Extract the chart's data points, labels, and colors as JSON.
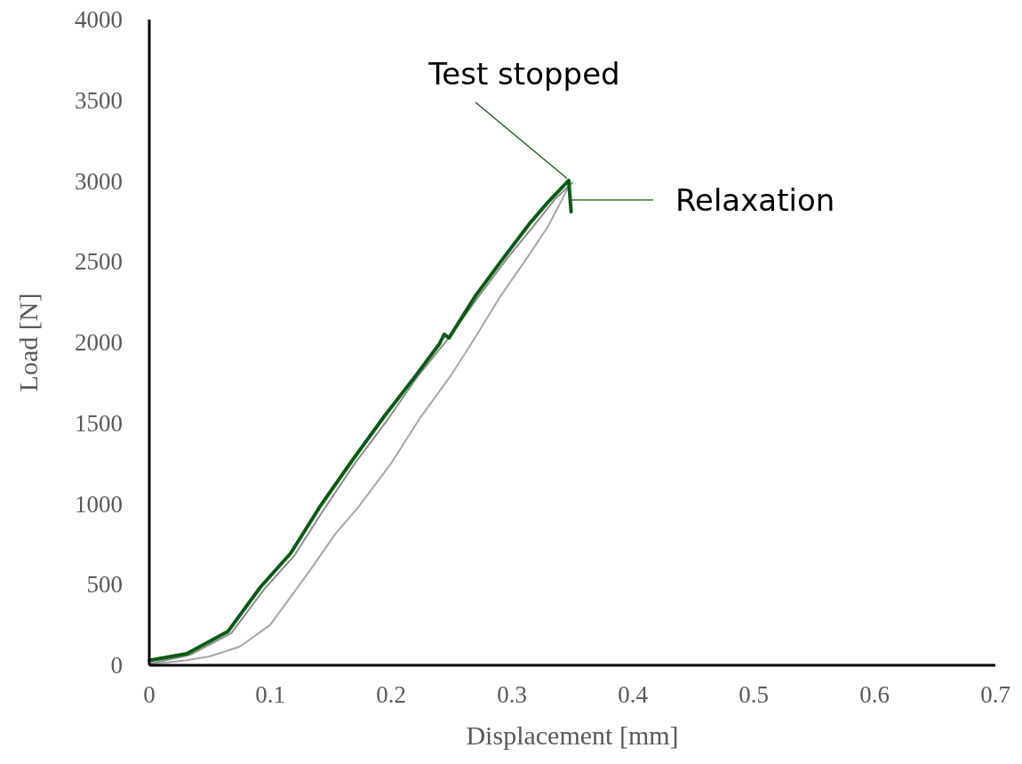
{
  "chart_data": {
    "type": "line",
    "xlabel": "Displacement [mm]",
    "ylabel": "Load [N]",
    "xlim": [
      0,
      0.7
    ],
    "ylim": [
      0,
      4000
    ],
    "xticks": [
      0,
      0.1,
      0.2,
      0.3,
      0.4,
      0.5,
      0.6,
      0.7
    ],
    "yticks": [
      0,
      500,
      1000,
      1500,
      2000,
      2500,
      3000,
      3500,
      4000
    ],
    "grid": false,
    "marker": "none",
    "line_style": "solid",
    "annotations": [
      {
        "text": "Test stopped",
        "x": 0.347,
        "y": 3000
      },
      "Relaxation"
    ],
    "series": [
      {
        "color": "#a6a6a6",
        "x": [
          0,
          0.03,
          0.05,
          0.075,
          0.1,
          0.132,
          0.154,
          0.173,
          0.2,
          0.224,
          0.25,
          0.268,
          0.29,
          0.3125,
          0.33,
          0.342,
          0.348
        ],
        "values": [
          5,
          30,
          55,
          116,
          250,
          578,
          815,
          980,
          1250,
          1532,
          1800,
          2011,
          2280,
          2523,
          2720,
          2893,
          2980
        ]
      },
      {
        "color": "#8c8c8c",
        "x": [
          0,
          0.034,
          0.068,
          0.095,
          0.12,
          0.144,
          0.17,
          0.198,
          0.222,
          0.247,
          0.272,
          0.296,
          0.32,
          0.336,
          0.35
        ],
        "values": [
          10,
          65,
          200,
          470,
          680,
          960,
          1250,
          1530,
          1790,
          2020,
          2280,
          2520,
          2740,
          2890,
          2990
        ]
      },
      {
        "color": "#0b5a14",
        "x": [
          0,
          0.031,
          0.065,
          0.092,
          0.117,
          0.141,
          0.168,
          0.195,
          0.22,
          0.24,
          0.244,
          0.248,
          0.27,
          0.293,
          0.315,
          0.33,
          0.347,
          0.349
        ],
        "values": [
          30,
          72,
          209,
          485,
          694,
          981,
          1270,
          1548,
          1790,
          1990,
          2050,
          2028,
          2290,
          2523,
          2740,
          2870,
          3003,
          2810
        ]
      }
    ]
  }
}
